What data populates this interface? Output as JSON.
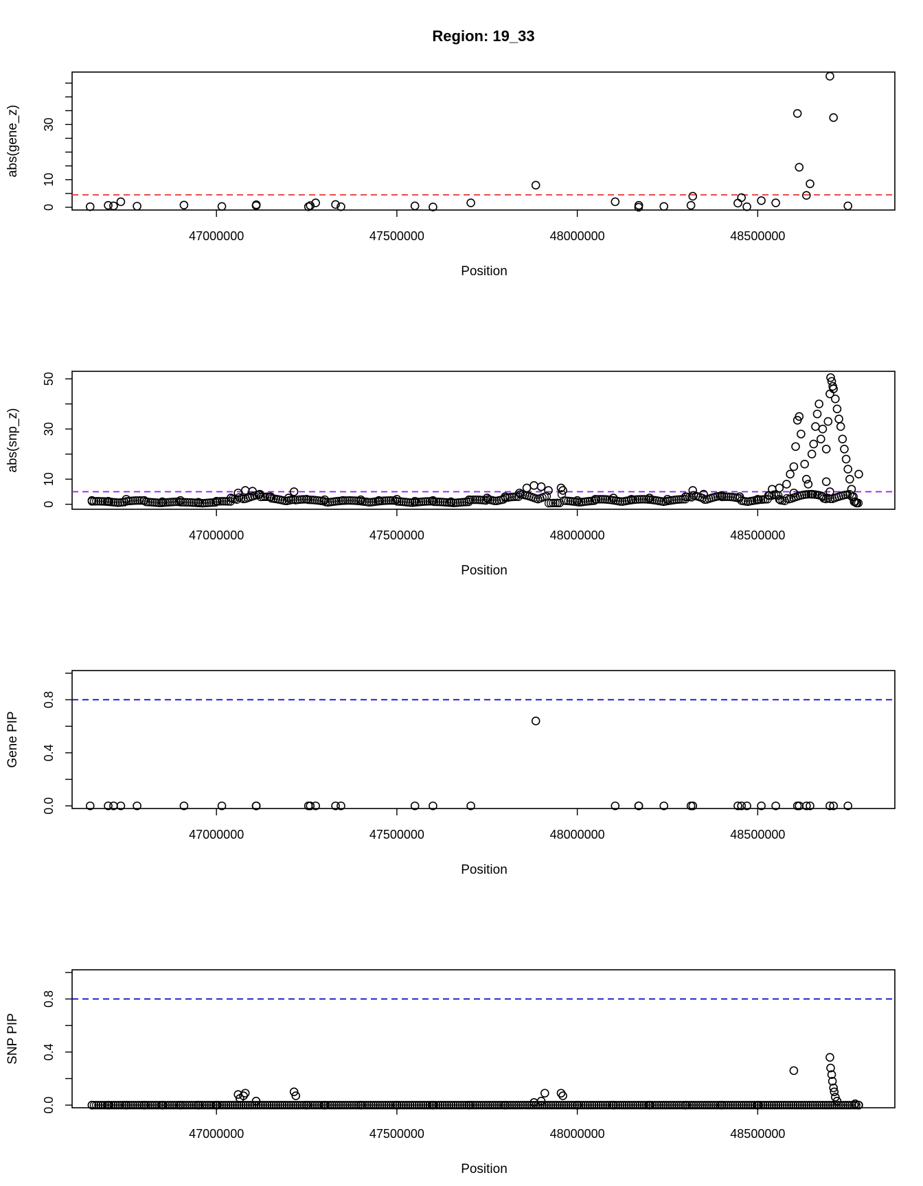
{
  "title": "Region: 19_33",
  "chart_data": [
    {
      "type": "scatter",
      "ylabel": "abs(gene_z)",
      "xlabel": "Position",
      "xlim": [
        46600000,
        48880000
      ],
      "ylim": [
        -1,
        49
      ],
      "x_ticks": [
        47000000,
        47500000,
        48000000,
        48500000
      ],
      "x_tick_labels": [
        "47000000",
        "47500000",
        "48000000",
        "48500000"
      ],
      "y_ticks": [
        0,
        5,
        10,
        15,
        20,
        25,
        30,
        35,
        40,
        45
      ],
      "y_tick_labels": [
        "0",
        "",
        "10",
        "",
        "",
        "",
        "30",
        "",
        "",
        ""
      ],
      "threshold": {
        "value": 4.5,
        "color": "#e8312f",
        "style": "dashed"
      },
      "series": [
        {
          "points": [
            [
              46650000,
              0.2
            ],
            [
              46700000,
              0.7
            ],
            [
              46715000,
              0.5
            ],
            [
              46735000,
              2.0
            ],
            [
              46780000,
              0.4
            ],
            [
              46910000,
              0.8
            ],
            [
              47015000,
              0.3
            ],
            [
              47110000,
              0.6
            ],
            [
              47110500,
              0.9
            ],
            [
              47255000,
              0.2
            ],
            [
              47260000,
              0.6
            ],
            [
              47275000,
              1.6
            ],
            [
              47330000,
              1.0
            ],
            [
              47345000,
              0.2
            ],
            [
              47550000,
              0.5
            ],
            [
              47600000,
              0.1
            ],
            [
              47705000,
              1.6
            ],
            [
              47885000,
              8.0
            ],
            [
              48105000,
              2.0
            ],
            [
              48170000,
              0.0
            ],
            [
              48170500,
              0.7
            ],
            [
              48240000,
              0.3
            ],
            [
              48315000,
              0.7
            ],
            [
              48320000,
              4.0
            ],
            [
              48445000,
              1.5
            ],
            [
              48455000,
              3.5
            ],
            [
              48470000,
              0.2
            ],
            [
              48510000,
              2.4
            ],
            [
              48550000,
              1.6
            ],
            [
              48610000,
              34.0
            ],
            [
              48615000,
              14.5
            ],
            [
              48635000,
              4.3
            ],
            [
              48645000,
              8.5
            ],
            [
              48700000,
              47.5
            ],
            [
              48710000,
              32.5
            ],
            [
              48750000,
              0.5
            ]
          ]
        }
      ]
    },
    {
      "type": "scatter",
      "ylabel": "abs(snp_z)",
      "xlabel": "Position",
      "xlim": [
        46600000,
        48880000
      ],
      "ylim": [
        -2,
        53
      ],
      "x_ticks": [
        47000000,
        47500000,
        48000000,
        48500000
      ],
      "x_tick_labels": [
        "47000000",
        "47500000",
        "48000000",
        "48500000"
      ],
      "y_ticks": [
        0,
        10,
        20,
        30,
        40,
        50
      ],
      "y_tick_labels": [
        "0",
        "10",
        "",
        "30",
        "",
        "50"
      ],
      "threshold": {
        "value": 5.0,
        "color": "#a020f0",
        "style": "dashed"
      },
      "series": [
        {
          "points": [
            [
              46655000,
              1.5
            ],
            [
              46700000,
              1.2
            ],
            [
              46750000,
              2.0
            ],
            [
              46800000,
              1.5
            ],
            [
              46850000,
              1.0
            ],
            [
              46900000,
              1.5
            ],
            [
              46950000,
              0.8
            ],
            [
              47000000,
              1.2
            ],
            [
              47040000,
              2.5
            ],
            [
              47060000,
              4.5
            ],
            [
              47080000,
              5.5
            ],
            [
              47100000,
              5.2
            ],
            [
              47120000,
              4.0
            ],
            [
              47150000,
              3.0
            ],
            [
              47200000,
              2.5
            ],
            [
              47215000,
              5.0
            ],
            [
              47250000,
              2.0
            ],
            [
              47300000,
              1.8
            ],
            [
              47350000,
              1.5
            ],
            [
              47400000,
              1.8
            ],
            [
              47450000,
              1.5
            ],
            [
              47500000,
              2.0
            ],
            [
              47550000,
              1.2
            ],
            [
              47600000,
              1.5
            ],
            [
              47650000,
              1.0
            ],
            [
              47700000,
              1.8
            ],
            [
              47750000,
              2.5
            ],
            [
              47800000,
              3.0
            ],
            [
              47840000,
              4.5
            ],
            [
              47860000,
              6.5
            ],
            [
              47880000,
              7.5
            ],
            [
              47900000,
              7.0
            ],
            [
              47920000,
              5.5
            ],
            [
              47945000,
              0.5
            ],
            [
              47955000,
              6.5
            ],
            [
              47960000,
              5.5
            ],
            [
              48000000,
              1.5
            ],
            [
              48050000,
              2.0
            ],
            [
              48100000,
              2.5
            ],
            [
              48150000,
              2.0
            ],
            [
              48200000,
              2.5
            ],
            [
              48250000,
              2.0
            ],
            [
              48300000,
              3.0
            ],
            [
              48320000,
              5.5
            ],
            [
              48350000,
              4.0
            ],
            [
              48400000,
              3.5
            ],
            [
              48450000,
              3.0
            ],
            [
              48500000,
              2.0
            ],
            [
              48530000,
              3.5
            ],
            [
              48540000,
              6.0
            ],
            [
              48560000,
              6.5
            ],
            [
              48580000,
              8.0
            ],
            [
              48590000,
              12.0
            ],
            [
              48600000,
              15.0
            ],
            [
              48605000,
              23.0
            ],
            [
              48610000,
              33.5
            ],
            [
              48615000,
              35.0
            ],
            [
              48620000,
              28.0
            ],
            [
              48630000,
              16.0
            ],
            [
              48635000,
              10.0
            ],
            [
              48640000,
              8.0
            ],
            [
              48650000,
              20.0
            ],
            [
              48655000,
              24.0
            ],
            [
              48660000,
              31.0
            ],
            [
              48665000,
              36.0
            ],
            [
              48670000,
              40.0
            ],
            [
              48675000,
              26.0
            ],
            [
              48680000,
              30.0
            ],
            [
              48690000,
              22.0
            ],
            [
              48695000,
              33.0
            ],
            [
              48700000,
              44.0
            ],
            [
              48702000,
              50.5
            ],
            [
              48705000,
              49.0
            ],
            [
              48708000,
              47.0
            ],
            [
              48710000,
              46.0
            ],
            [
              48715000,
              42.0
            ],
            [
              48720000,
              38.0
            ],
            [
              48725000,
              34.0
            ],
            [
              48730000,
              31.0
            ],
            [
              48735000,
              26.0
            ],
            [
              48740000,
              22.0
            ],
            [
              48745000,
              18.0
            ],
            [
              48750000,
              14.0
            ],
            [
              48755000,
              10.0
            ],
            [
              48760000,
              6.0
            ],
            [
              48765000,
              3.0
            ],
            [
              48770000,
              1.0
            ],
            [
              48775000,
              0.5
            ],
            [
              48780000,
              12.0
            ],
            [
              48700000,
              5.0
            ],
            [
              48680000,
              3.0
            ],
            [
              48650000,
              4.0
            ],
            [
              48600000,
              4.5
            ],
            [
              48560000,
              2.0
            ],
            [
              48690000,
              9.0
            ]
          ]
        }
      ]
    },
    {
      "type": "scatter",
      "ylabel": "Gene PIP",
      "xlabel": "Position",
      "xlim": [
        46600000,
        48880000
      ],
      "ylim": [
        -0.02,
        1.02
      ],
      "x_ticks": [
        47000000,
        47500000,
        48000000,
        48500000
      ],
      "x_tick_labels": [
        "47000000",
        "47500000",
        "48000000",
        "48500000"
      ],
      "y_ticks": [
        0.0,
        0.2,
        0.4,
        0.6,
        0.8,
        1.0
      ],
      "y_tick_labels": [
        "0.0",
        "",
        "0.4",
        "",
        "0.8",
        ""
      ],
      "threshold": {
        "value": 0.8,
        "color": "#0000cd",
        "style": "dashed"
      },
      "series": [
        {
          "points": [
            [
              46650000,
              0.0
            ],
            [
              46700000,
              0.0
            ],
            [
              46715000,
              0.0
            ],
            [
              46735000,
              0.0
            ],
            [
              46780000,
              0.0
            ],
            [
              46910000,
              0.0
            ],
            [
              47015000,
              0.0
            ],
            [
              47110000,
              0.0
            ],
            [
              47110500,
              0.0
            ],
            [
              47255000,
              0.0
            ],
            [
              47260000,
              0.0
            ],
            [
              47275000,
              0.0
            ],
            [
              47330000,
              0.0
            ],
            [
              47345000,
              0.0
            ],
            [
              47550000,
              0.0
            ],
            [
              47600000,
              0.0
            ],
            [
              47705000,
              0.0
            ],
            [
              47885000,
              0.64
            ],
            [
              48105000,
              0.0
            ],
            [
              48170000,
              0.0
            ],
            [
              48170500,
              0.0
            ],
            [
              48240000,
              0.0
            ],
            [
              48315000,
              0.0
            ],
            [
              48320000,
              0.0
            ],
            [
              48445000,
              0.0
            ],
            [
              48455000,
              0.0
            ],
            [
              48470000,
              0.0
            ],
            [
              48510000,
              0.0
            ],
            [
              48550000,
              0.0
            ],
            [
              48610000,
              0.0
            ],
            [
              48615000,
              0.0
            ],
            [
              48635000,
              0.0
            ],
            [
              48645000,
              0.0
            ],
            [
              48700000,
              0.0
            ],
            [
              48710000,
              0.0
            ],
            [
              48750000,
              0.0
            ]
          ]
        }
      ]
    },
    {
      "type": "scatter",
      "ylabel": "SNP PIP",
      "xlabel": "Position",
      "xlim": [
        46600000,
        48880000
      ],
      "ylim": [
        -0.02,
        1.02
      ],
      "x_ticks": [
        47000000,
        47500000,
        48000000,
        48500000
      ],
      "x_tick_labels": [
        "47000000",
        "47500000",
        "48000000",
        "48500000"
      ],
      "y_ticks": [
        0.0,
        0.2,
        0.4,
        0.6,
        0.8,
        1.0
      ],
      "y_tick_labels": [
        "0.0",
        "",
        "0.4",
        "",
        "0.8",
        ""
      ],
      "threshold": {
        "value": 0.8,
        "color": "#0000cd",
        "style": "dashed"
      },
      "series": [
        {
          "points": [
            [
              46655000,
              0.0
            ],
            [
              46700000,
              0.0
            ],
            [
              46750000,
              0.0
            ],
            [
              46800000,
              0.0
            ],
            [
              46850000,
              0.0
            ],
            [
              46900000,
              0.0
            ],
            [
              46950000,
              0.0
            ],
            [
              47000000,
              0.0
            ],
            [
              47060000,
              0.08
            ],
            [
              47065000,
              0.05
            ],
            [
              47075000,
              0.07
            ],
            [
              47080000,
              0.09
            ],
            [
              47110000,
              0.03
            ],
            [
              47215000,
              0.1
            ],
            [
              47220000,
              0.07
            ],
            [
              47250000,
              0.0
            ],
            [
              47300000,
              0.0
            ],
            [
              47400000,
              0.0
            ],
            [
              47500000,
              0.0
            ],
            [
              47600000,
              0.0
            ],
            [
              47700000,
              0.0
            ],
            [
              47800000,
              0.0
            ],
            [
              47880000,
              0.02
            ],
            [
              47900000,
              0.03
            ],
            [
              47910000,
              0.09
            ],
            [
              47955000,
              0.09
            ],
            [
              47960000,
              0.07
            ],
            [
              48000000,
              0.0
            ],
            [
              48100000,
              0.0
            ],
            [
              48200000,
              0.0
            ],
            [
              48300000,
              0.0
            ],
            [
              48400000,
              0.0
            ],
            [
              48500000,
              0.0
            ],
            [
              48600000,
              0.26
            ],
            [
              48700000,
              0.36
            ],
            [
              48702000,
              0.28
            ],
            [
              48705000,
              0.23
            ],
            [
              48707000,
              0.18
            ],
            [
              48710000,
              0.13
            ],
            [
              48712000,
              0.1
            ],
            [
              48715000,
              0.06
            ],
            [
              48720000,
              0.03
            ],
            [
              48770000,
              0.01
            ],
            [
              48780000,
              0.0
            ]
          ]
        }
      ]
    }
  ]
}
